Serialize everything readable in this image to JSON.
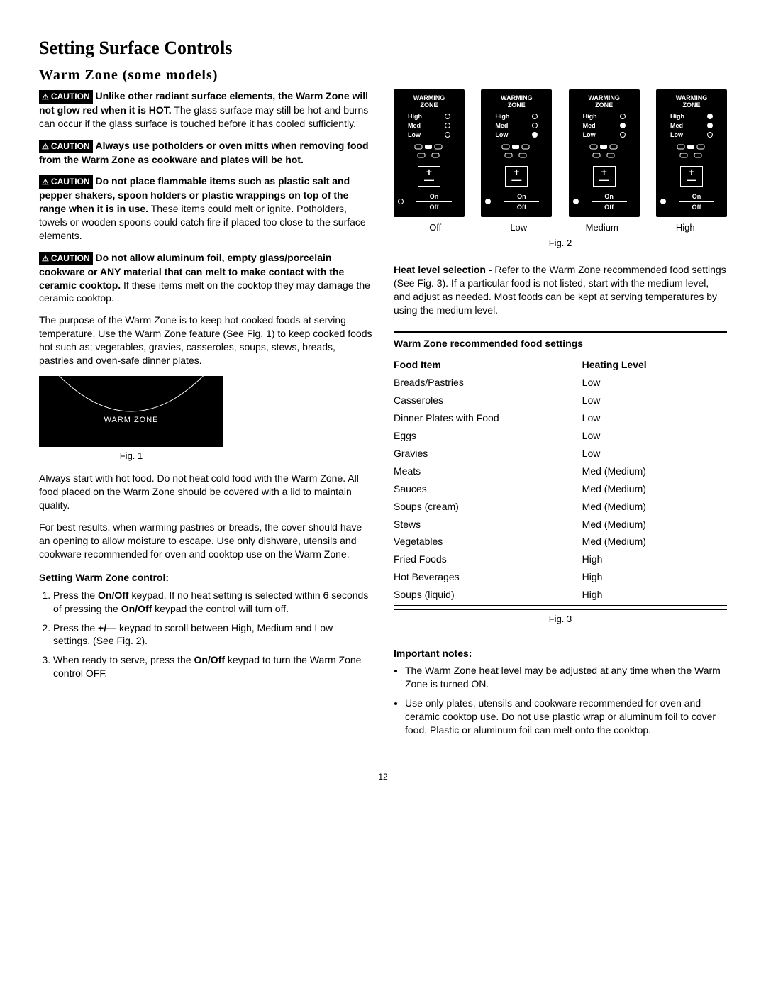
{
  "heading": "Setting Surface Controls",
  "subheading": "Warm  Zone  (some  models)",
  "caution_label": "CAUTION",
  "cautions": [
    {
      "bold": "Unlike other radiant surface elements, the Warm Zone will not glow red when it is HOT.",
      "rest": " The glass surface may still be hot and burns can occur if the glass surface is touched before it has cooled sufficiently."
    },
    {
      "bold": "Always use potholders or oven mitts when removing food from the Warm Zone as cookware and plates will be hot.",
      "rest": ""
    },
    {
      "bold": "Do not place flammable items such as plastic salt and pepper shakers, spoon holders or plastic wrappings on top of the range when it is in use.",
      "rest": " These items could melt or ignite. Potholders, towels or wooden spoons could catch fire if placed too close to the surface elements."
    },
    {
      "bold": "Do not allow aluminum foil, empty glass/porcelain cookware or ANY material that can melt to make contact with the ceramic cooktop.",
      "rest": " If these items melt on the cooktop they may damage the ceramic cooktop."
    }
  ],
  "purpose_para": "The purpose of the Warm Zone is to keep hot cooked foods at serving temperature. Use the Warm Zone feature (See Fig. 1) to keep cooked foods hot such as; vegetables, gravies, casseroles, soups, stews, breads, pastries and oven-safe dinner plates.",
  "fig1_label": "WARM ZONE",
  "fig1_caption": "Fig. 1",
  "always_start_para": "Always start with hot food. Do not heat cold food with the Warm Zone. All food placed on the Warm Zone should be covered with a lid to maintain quality.",
  "best_results_para": "For best results, when warming pastries or breads, the cover should have an opening to allow moisture to escape. Use only dishware, utensils and cookware recommended for oven and cooktop use on the Warm Zone.",
  "setting_heading": "Setting Warm Zone control:",
  "steps": [
    {
      "pre": "Press the ",
      "b1": "On/Off",
      "mid": " keypad. If no heat setting is selected within 6 seconds of pressing the ",
      "b2": "On/Off",
      "post": " keypad the control will turn off."
    },
    {
      "pre": "Press the ",
      "b1": "+/—",
      "mid": " keypad to scroll between High, Medium and Low settings.  (See Fig. 2).",
      "b2": "",
      "post": ""
    },
    {
      "pre": "When ready to serve, press the ",
      "b1": "On/Off",
      "mid": " keypad to turn the Warm Zone control OFF.",
      "b2": "",
      "post": ""
    }
  ],
  "panel": {
    "title1": "WARMING",
    "title2": "ZONE",
    "levels": [
      "High",
      "Med",
      "Low"
    ],
    "on": "On",
    "off": "Off",
    "states": [
      {
        "label": "Off",
        "high": false,
        "med": false,
        "low": false,
        "ind": false
      },
      {
        "label": "Low",
        "high": false,
        "med": false,
        "low": true,
        "ind": true
      },
      {
        "label": "Medium",
        "high": false,
        "med": true,
        "low": false,
        "ind": true
      },
      {
        "label": "High",
        "high": true,
        "med": true,
        "low": false,
        "ind": true
      }
    ]
  },
  "fig2_caption": "Fig. 2",
  "heat_para_bold": "Heat level selection",
  "heat_para_rest": " - Refer to the Warm Zone recommended food settings (See Fig. 3). If a particular food is not listed, start with the medium level, and adjust as needed. Most foods can be kept at serving temperatures by using the medium level.",
  "table_title": "Warm Zone recommended food settings",
  "table_headers": [
    "Food Item",
    "Heating Level"
  ],
  "table_rows": [
    [
      "Breads/Pastries",
      "Low"
    ],
    [
      "Casseroles",
      "Low"
    ],
    [
      "Dinner Plates with Food",
      "Low"
    ],
    [
      "Eggs",
      "Low"
    ],
    [
      "Gravies",
      "Low"
    ],
    [
      "Meats",
      "Med (Medium)"
    ],
    [
      "Sauces",
      "Med (Medium)"
    ],
    [
      "Soups (cream)",
      "Med (Medium)"
    ],
    [
      "Stews",
      "Med (Medium)"
    ],
    [
      "Vegetables",
      "Med (Medium)"
    ],
    [
      "Fried Foods",
      "High"
    ],
    [
      "Hot Beverages",
      "High"
    ],
    [
      "Soups (liquid)",
      "High"
    ]
  ],
  "fig3_caption": "Fig. 3",
  "notes_heading": "Important notes:",
  "notes": [
    "The Warm Zone heat level may be adjusted at any time when the Warm Zone is turned ON.",
    "Use only plates, utensils and cookware recommended for oven and ceramic cooktop use. Do not use plastic wrap or aluminum foil to cover food. Plastic or aluminum foil can melt onto the cooktop."
  ],
  "page_number": "12"
}
